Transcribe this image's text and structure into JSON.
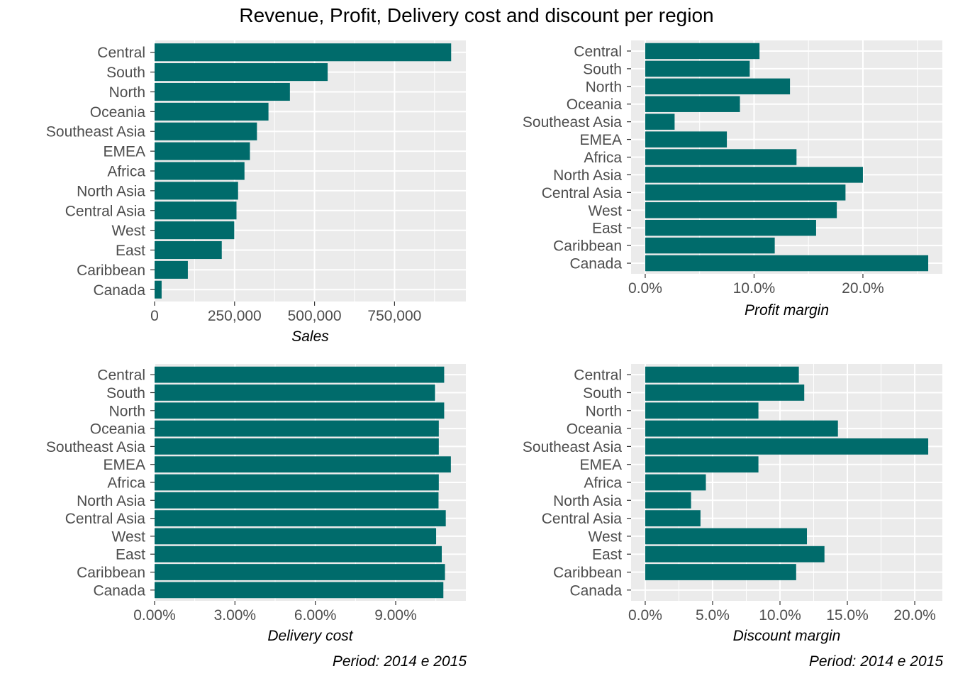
{
  "title": "Revenue, Profit, Delivery cost and discount per region",
  "captions": [
    "Period: 2014 e 2015",
    "Period: 2014 e 2015"
  ],
  "colors": {
    "bar": "#006B6B",
    "panel": "#EBEBEB",
    "grid": "#FFFFFF",
    "tick_text": "#4D4D4D"
  },
  "chart_data": [
    {
      "type": "bar",
      "orientation": "horizontal",
      "categories": [
        "Central",
        "South",
        "North",
        "Oceania",
        "Southeast Asia",
        "EMEA",
        "Africa",
        "North Asia",
        "Central Asia",
        "West",
        "East",
        "Caribbean",
        "Canada"
      ],
      "values": [
        927000,
        541000,
        423000,
        356000,
        320000,
        298000,
        281000,
        261000,
        256000,
        249000,
        210000,
        104000,
        22000
      ],
      "xlabel": "Sales",
      "xlim": [
        0,
        973000
      ],
      "xticks": [
        0,
        250000,
        500000,
        750000
      ],
      "xtick_labels": [
        "0",
        "250,000",
        "500,000",
        "750,000"
      ]
    },
    {
      "type": "bar",
      "orientation": "horizontal",
      "categories": [
        "Central",
        "South",
        "North",
        "Oceania",
        "Southeast Asia",
        "EMEA",
        "Africa",
        "North Asia",
        "Central Asia",
        "West",
        "East",
        "Caribbean",
        "Canada"
      ],
      "values": [
        0.105,
        0.096,
        0.133,
        0.087,
        0.027,
        0.075,
        0.139,
        0.2,
        0.184,
        0.176,
        0.157,
        0.119,
        0.26
      ],
      "xlabel": "Profit margin",
      "xlim": [
        -0.013,
        0.273
      ],
      "xticks": [
        0,
        0.1,
        0.2
      ],
      "xtick_labels": [
        "0.0%",
        "10.0%",
        "20.0%"
      ]
    },
    {
      "type": "bar",
      "orientation": "horizontal",
      "categories": [
        "Central",
        "South",
        "North",
        "Oceania",
        "Southeast Asia",
        "EMEA",
        "Africa",
        "North Asia",
        "Central Asia",
        "West",
        "East",
        "Caribbean",
        "Canada"
      ],
      "values": [
        0.1081,
        0.1047,
        0.1081,
        0.1061,
        0.1061,
        0.1106,
        0.1061,
        0.106,
        0.1087,
        0.1051,
        0.1072,
        0.1084,
        0.1078
      ],
      "xlabel": "Delivery cost",
      "xlim": [
        0,
        0.1162
      ],
      "xticks": [
        0,
        0.03,
        0.06,
        0.09
      ],
      "xtick_labels": [
        "0.00%",
        "3.00%",
        "6.00%",
        "9.00%"
      ]
    },
    {
      "type": "bar",
      "orientation": "horizontal",
      "categories": [
        "Central",
        "South",
        "North",
        "Oceania",
        "Southeast Asia",
        "EMEA",
        "Africa",
        "North Asia",
        "Central Asia",
        "West",
        "East",
        "Caribbean",
        "Canada"
      ],
      "values": [
        0.114,
        0.118,
        0.084,
        0.143,
        0.21,
        0.084,
        0.045,
        0.034,
        0.041,
        0.12,
        0.133,
        0.112,
        0.0
      ],
      "xlabel": "Discount margin",
      "xlim": [
        -0.0105,
        0.2205
      ],
      "xticks": [
        0,
        0.05,
        0.1,
        0.15,
        0.2
      ],
      "xtick_labels": [
        "0.0%",
        "5.0%",
        "10.0%",
        "15.0%",
        "20.0%"
      ]
    }
  ]
}
